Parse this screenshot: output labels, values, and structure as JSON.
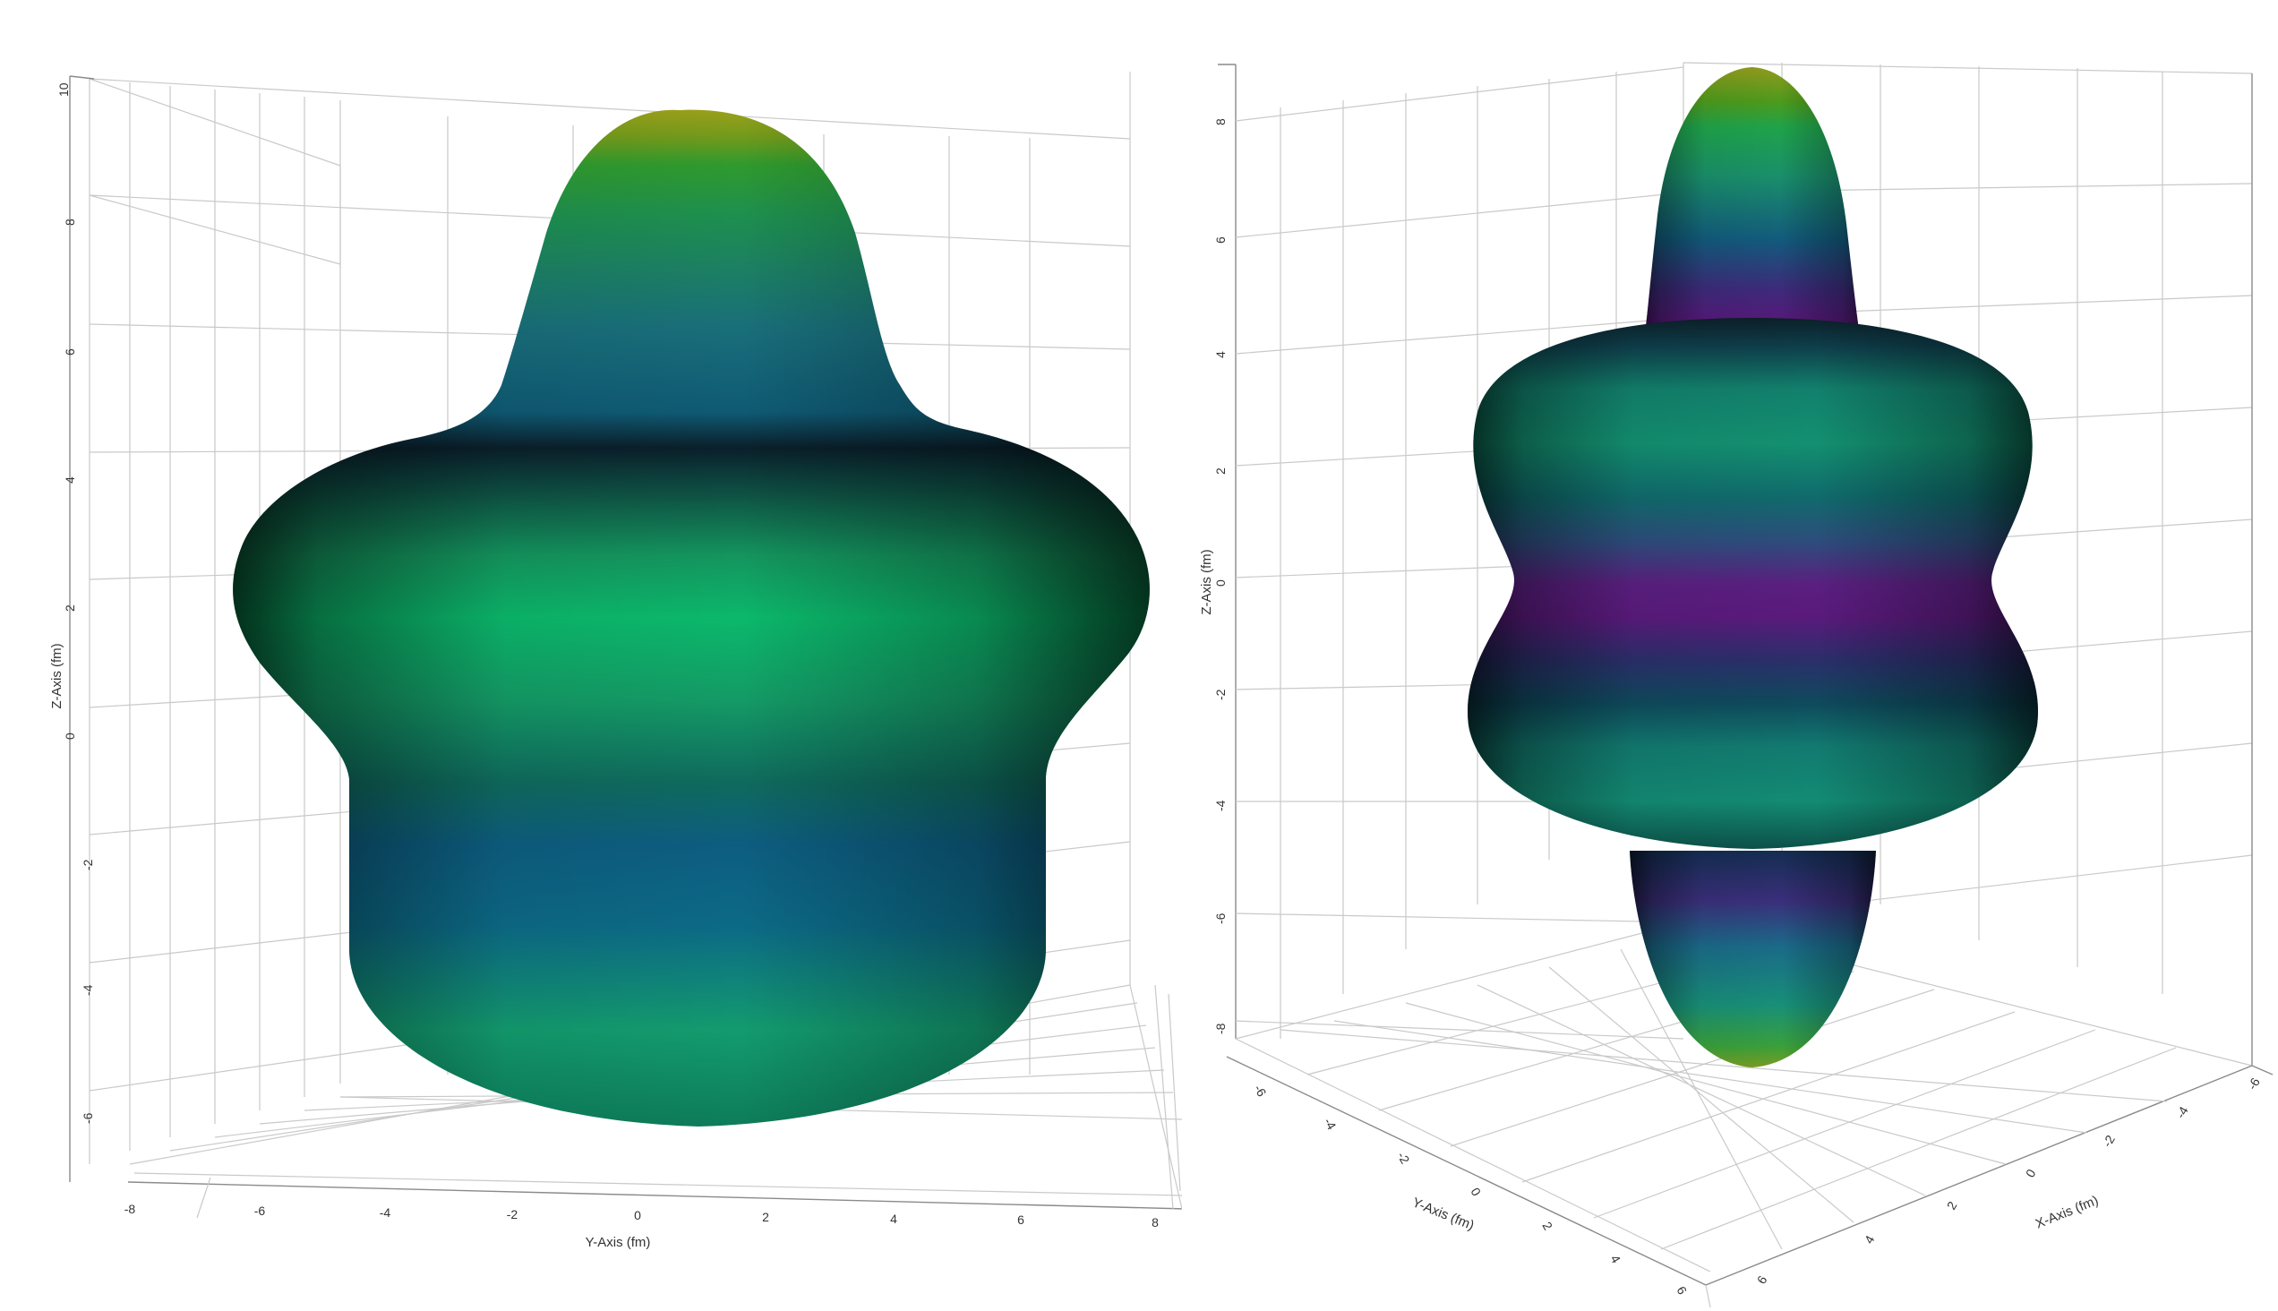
{
  "colors": {
    "background": "#ffffff",
    "grid": "#c9c9c9",
    "colormap": [
      "#440154",
      "#31688e",
      "#21918c",
      "#35b779",
      "#fde725"
    ]
  },
  "chart_data": [
    {
      "type": "surface3d",
      "panel": "left",
      "view": "side",
      "ylabel": "Y-Axis (fm)",
      "zlabel": "Z-Axis (fm)",
      "y_ticks": [
        "-8",
        "-6",
        "-4",
        "-2",
        "0",
        "2",
        "4",
        "6",
        "8"
      ],
      "z_ticks": [
        "10",
        "8",
        "6",
        "4",
        "2",
        "0",
        "-2",
        "-4",
        "-6"
      ],
      "ylim": [
        -8,
        8
      ],
      "zlim": [
        -7,
        10
      ],
      "grid": true,
      "colormap": "viridis"
    },
    {
      "type": "surface3d",
      "panel": "right",
      "view": "oblique",
      "xlabel": "X-Axis (fm)",
      "ylabel": "Y-Axis (fm)",
      "zlabel": "Z-Axis (fm)",
      "x_ticks": [
        "6",
        "4",
        "2",
        "0",
        "-2",
        "-4",
        "-6"
      ],
      "y_ticks": [
        "-6",
        "-4",
        "-2",
        "0",
        "2",
        "4",
        "6"
      ],
      "z_ticks": [
        "8",
        "6",
        "4",
        "2",
        "0",
        "-2",
        "-4",
        "-6",
        "-8"
      ],
      "xlim": [
        -6,
        6
      ],
      "ylim": [
        -6,
        6
      ],
      "zlim": [
        -9,
        9
      ],
      "grid": true,
      "colormap": "viridis"
    }
  ]
}
